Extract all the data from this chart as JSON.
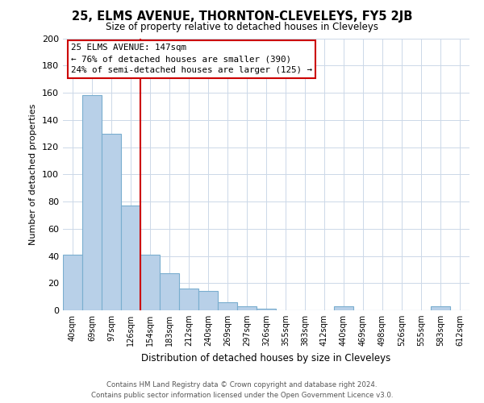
{
  "title": "25, ELMS AVENUE, THORNTON-CLEVELEYS, FY5 2JB",
  "subtitle": "Size of property relative to detached houses in Cleveleys",
  "xlabel": "Distribution of detached houses by size in Cleveleys",
  "ylabel": "Number of detached properties",
  "bar_labels": [
    "40sqm",
    "69sqm",
    "97sqm",
    "126sqm",
    "154sqm",
    "183sqm",
    "212sqm",
    "240sqm",
    "269sqm",
    "297sqm",
    "326sqm",
    "355sqm",
    "383sqm",
    "412sqm",
    "440sqm",
    "469sqm",
    "498sqm",
    "526sqm",
    "555sqm",
    "583sqm",
    "612sqm"
  ],
  "bar_values": [
    41,
    158,
    130,
    77,
    41,
    27,
    16,
    14,
    6,
    3,
    1,
    0,
    0,
    0,
    3,
    0,
    0,
    0,
    0,
    3,
    0
  ],
  "bar_color": "#b8d0e8",
  "bar_edge_color": "#7aaecf",
  "vline_color": "#cc0000",
  "annotation_title": "25 ELMS AVENUE: 147sqm",
  "annotation_line1": "← 76% of detached houses are smaller (390)",
  "annotation_line2": "24% of semi-detached houses are larger (125) →",
  "annotation_box_color": "#ffffff",
  "annotation_box_edge": "#cc0000",
  "ylim": [
    0,
    200
  ],
  "yticks": [
    0,
    20,
    40,
    60,
    80,
    100,
    120,
    140,
    160,
    180,
    200
  ],
  "footer1": "Contains HM Land Registry data © Crown copyright and database right 2024.",
  "footer2": "Contains public sector information licensed under the Open Government Licence v3.0.",
  "bg_color": "#ffffff",
  "grid_color": "#ccd8e8"
}
